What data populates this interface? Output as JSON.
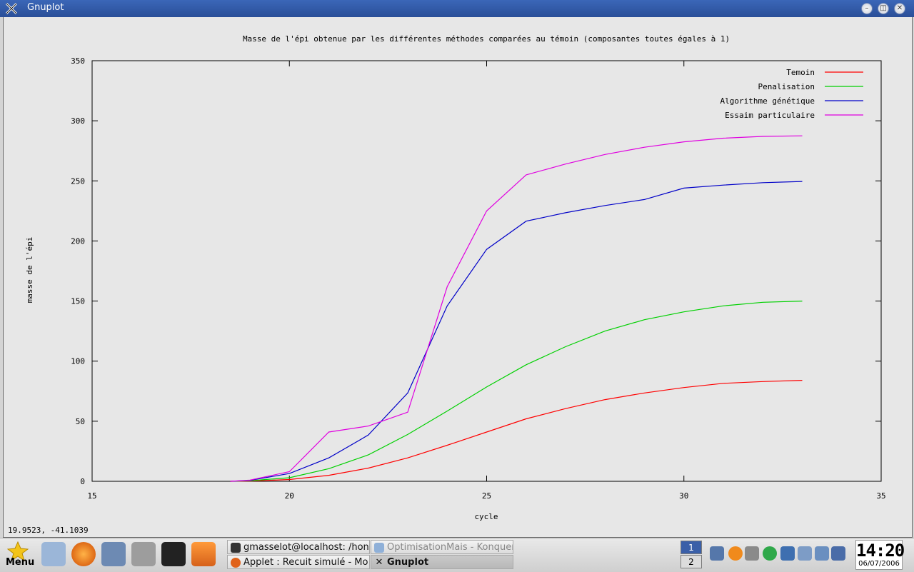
{
  "window": {
    "title": "Gnuplot"
  },
  "status": {
    "coords": "19.9523, -41.1039"
  },
  "chart_data": {
    "type": "line",
    "title": "Masse de l'épi obtenue par les différentes méthodes comparées au témoin (composantes toutes égales à 1)",
    "xlabel": "cycle",
    "ylabel": "masse de l'épi",
    "xlim": [
      15,
      35
    ],
    "ylim": [
      0,
      350
    ],
    "xticks": [
      15,
      20,
      25,
      30,
      35
    ],
    "yticks": [
      0,
      50,
      100,
      150,
      200,
      250,
      300,
      350
    ],
    "legend_position": "top-right",
    "grid": false,
    "series": [
      {
        "name": "Temoin",
        "color": "#ff0000",
        "x": [
          18.5,
          19,
          20,
          21,
          22,
          23,
          24,
          25,
          26,
          27,
          28,
          29,
          30,
          31,
          32,
          33
        ],
        "y": [
          0,
          0.2,
          1.5,
          5,
          11,
          19.5,
          30,
          41,
          52,
          60.5,
          68,
          73.5,
          78,
          81.5,
          83,
          84
        ]
      },
      {
        "name": "Penalisation",
        "color": "#00d000",
        "x": [
          18.5,
          19,
          20,
          21,
          22,
          23,
          24,
          25,
          26,
          27,
          28,
          29,
          30,
          31,
          32,
          33
        ],
        "y": [
          0,
          0.5,
          3,
          10.5,
          22,
          39,
          58.5,
          78.5,
          97,
          112,
          125,
          134.5,
          141,
          146,
          149,
          150
        ]
      },
      {
        "name": "Algorithme génétique",
        "color": "#0000c8",
        "x": [
          18.5,
          19,
          20,
          21,
          22,
          23,
          24,
          25,
          26,
          27,
          28,
          29,
          30,
          31,
          32,
          33
        ],
        "y": [
          0,
          0.8,
          6.5,
          19.5,
          38.5,
          73.5,
          146,
          193,
          216.5,
          223.5,
          229.5,
          234.5,
          244,
          246.5,
          248.5,
          249.5
        ]
      },
      {
        "name": "Essaim particulaire",
        "color": "#e000e0",
        "x": [
          18.5,
          19,
          20,
          21,
          22,
          23,
          24,
          25,
          26,
          27,
          28,
          29,
          30,
          31,
          32,
          33
        ],
        "y": [
          0,
          1,
          8,
          41,
          46,
          57.5,
          162,
          225,
          255,
          264,
          272,
          278,
          282.5,
          285.5,
          287,
          287.5
        ]
      }
    ]
  },
  "taskbar": {
    "menu_label": "Menu",
    "tasks": [
      {
        "label": "gmasselot@localhost: /hon",
        "state": "normal"
      },
      {
        "label": "OptimisationMais - Konquer",
        "state": "dim"
      },
      {
        "label": "Applet : Recuit simulé - Mo:",
        "state": "normal"
      },
      {
        "label": "Gnuplot",
        "state": "active"
      }
    ],
    "pager": [
      "1",
      "2"
    ],
    "clock_time": "14:20",
    "clock_date": "06/07/2006"
  }
}
